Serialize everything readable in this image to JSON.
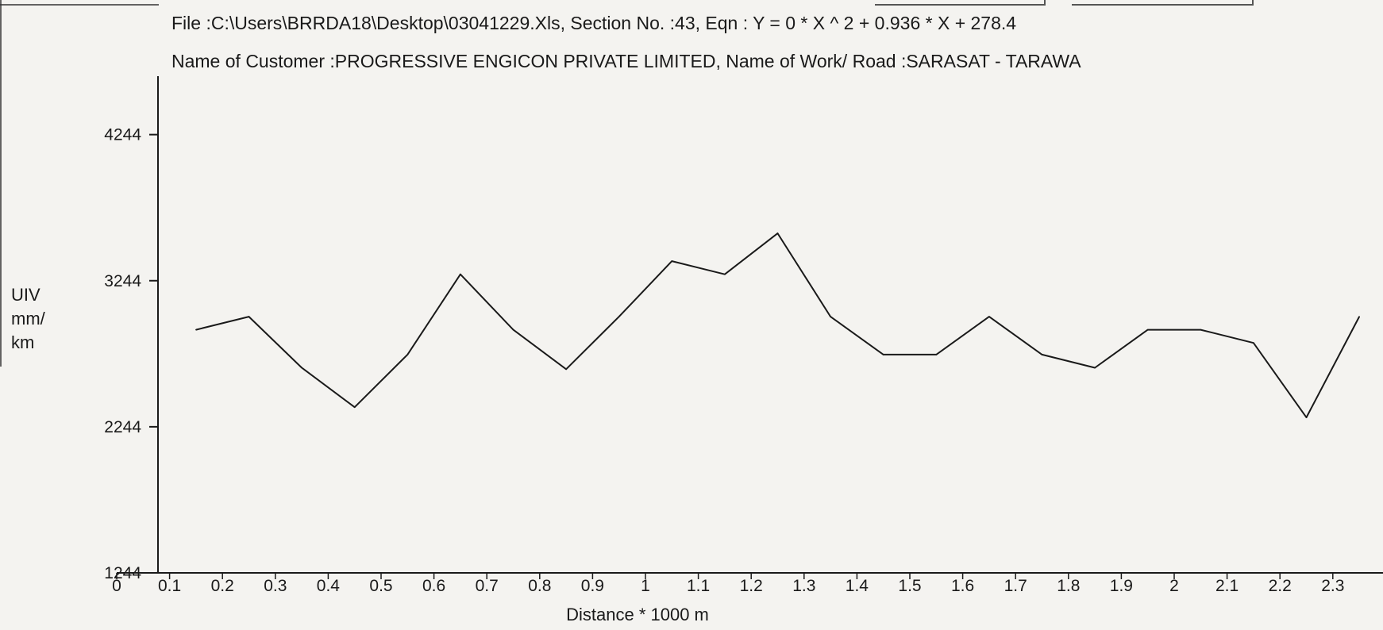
{
  "header": {
    "line1": "File :C:\\Users\\BRRDA18\\Desktop\\03041229.Xls,    Section No. :43,   Eqn : Y = 0 * X ^ 2 + 0.936 *  X  + 278.4",
    "line2": "Name of Customer :PROGRESSIVE ENGICON PRIVATE LIMITED,  Name of Work/ Road :SARASAT - TARAWA"
  },
  "chart_data": {
    "type": "line",
    "xlabel": "Distance * 1000 m",
    "ylabel_lines": [
      "UIV",
      "mm/",
      "km"
    ],
    "x_ticks": [
      "0",
      "0.1",
      "0.2",
      "0.3",
      "0.4",
      "0.5",
      "0.6",
      "0.7",
      "0.8",
      "0.9",
      "1",
      "1.1",
      "1.2",
      "1.3",
      "1.4",
      "1.5",
      "1.6",
      "1.7",
      "1.8",
      "1.9",
      "2",
      "2.1",
      "2.2",
      "2.3"
    ],
    "y_ticks": [
      "4244",
      "3244",
      "2244",
      "1244"
    ],
    "xlim": [
      0,
      2.35
    ],
    "ylim": [
      1244,
      4644
    ],
    "grid": false,
    "legend": "none",
    "line_color": "#1a1a1a",
    "series": [
      {
        "x": [
          0.15,
          0.25,
          0.35,
          0.45,
          0.55,
          0.65,
          0.75,
          0.85,
          0.95,
          1.05,
          1.15,
          1.25,
          1.35,
          1.45,
          1.55,
          1.65,
          1.75,
          1.85,
          1.95,
          2.05,
          2.15,
          2.25,
          2.35
        ],
        "values": [
          2908,
          2998,
          2648,
          2378,
          2738,
          3288,
          2908,
          2638,
          2998,
          3378,
          3288,
          3568,
          2998,
          2738,
          2738,
          2998,
          2738,
          2648,
          2908,
          2908,
          2818,
          2308,
          2998
        ]
      }
    ]
  }
}
